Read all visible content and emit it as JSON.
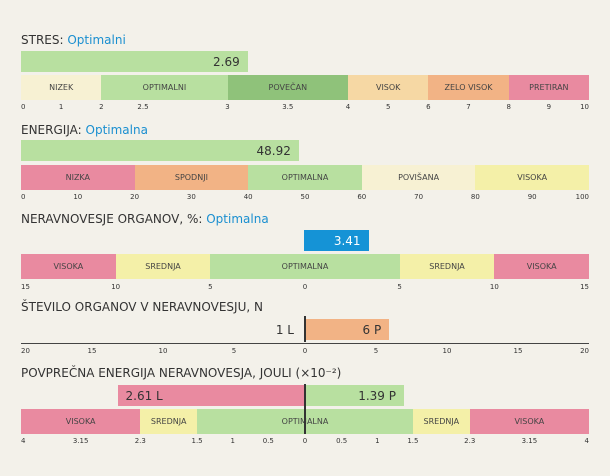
{
  "stress": {
    "label": "STRES:",
    "status": "Optimalni",
    "value": "2.69",
    "value_fraction": 0.2936,
    "segments": [
      {
        "label": "NIZEK",
        "color": "#f7f1d3",
        "weight": 1.4
      },
      {
        "label": "OPTIMALNI",
        "color": "#b8e0a0",
        "weight": 2.2
      },
      {
        "label": "POVEČAN",
        "color": "#8fc27a",
        "weight": 2.1
      },
      {
        "label": "VISOK",
        "color": "#f6d8a4",
        "weight": 1.4
      },
      {
        "label": "ZELO VISOK",
        "color": "#f2b385",
        "weight": 1.4
      },
      {
        "label": "PRETIRAN",
        "color": "#e98aa0",
        "weight": 1.4
      }
    ],
    "ticks": [
      "0",
      "1",
      "2",
      "2.5",
      "3",
      "3.5",
      "4",
      "5",
      "6",
      "7",
      "8",
      "9",
      "10"
    ]
  },
  "energy": {
    "label": "ENERGIJA:",
    "status": "Optimalna",
    "value": "48.92",
    "value_fraction": 0.4892,
    "segments": [
      {
        "label": "NIZKA",
        "color": "#e98aa0"
      },
      {
        "label": "SPODNJI",
        "color": "#f2b385"
      },
      {
        "label": "OPTIMALNA",
        "color": "#b8e0a0"
      },
      {
        "label": "POVIŠANA",
        "color": "#f7f1d3"
      },
      {
        "label": "VISOKA",
        "color": "#f4f0a8"
      }
    ],
    "ticks": [
      "0",
      "10",
      "20",
      "30",
      "40",
      "50",
      "60",
      "70",
      "80",
      "90",
      "100"
    ]
  },
  "imbalance": {
    "label": "NERAVNOVESJE ORGANOV, %:",
    "status": "Optimalna",
    "value": "3.41",
    "value_pct": 3.41,
    "bar_color": "#1593d6",
    "segments": [
      {
        "label": "VISOKA",
        "color": "#e98aa0",
        "weight": 1
      },
      {
        "label": "SREDNJA",
        "color": "#f4f0a8",
        "weight": 1
      },
      {
        "label": "OPTIMALNA",
        "color": "#b8e0a0",
        "weight": 2
      },
      {
        "label": "SREDNJA",
        "color": "#f4f0a8",
        "weight": 1
      },
      {
        "label": "VISOKA",
        "color": "#e98aa0",
        "weight": 1
      }
    ],
    "ticks": [
      "15",
      "10",
      "5",
      "0",
      "5",
      "10",
      "15"
    ]
  },
  "organs": {
    "label": "ŠTEVILO ORGANOV V NERAVNOVESJU, N",
    "left_value": "1 L",
    "left_count": 1,
    "right_value": "6 P",
    "right_count": 6,
    "right_color": "#f2b385",
    "ticks": [
      "20",
      "15",
      "10",
      "5",
      "0",
      "5",
      "10",
      "15",
      "20"
    ]
  },
  "avg_energy": {
    "label": "POVPREČNA ENERGIJA NERAVNOVESJA, JOULI (×10⁻²)",
    "left_value": "2.61 L",
    "left_amount": 2.61,
    "left_color": "#e98aa0",
    "right_value": "1.39 P",
    "right_amount": 1.39,
    "right_color": "#b8e0a0",
    "segments": [
      {
        "label": "VISOKA",
        "color": "#e98aa0",
        "weight": 2.1
      },
      {
        "label": "SREDNJA",
        "color": "#f4f0a8",
        "weight": 1.0
      },
      {
        "label": "OPTIMALNA",
        "color": "#b8e0a0",
        "weight": 3.8
      },
      {
        "label": "SREDNJA",
        "color": "#f4f0a8",
        "weight": 1.0
      },
      {
        "label": "VISOKA",
        "color": "#e98aa0",
        "weight": 2.1
      }
    ],
    "ticks": [
      "4",
      "3.15",
      "2.3",
      "1.5",
      "1",
      "0.5",
      "0",
      "0.5",
      "1",
      "1.5",
      "2.3",
      "3.15",
      "4"
    ]
  }
}
